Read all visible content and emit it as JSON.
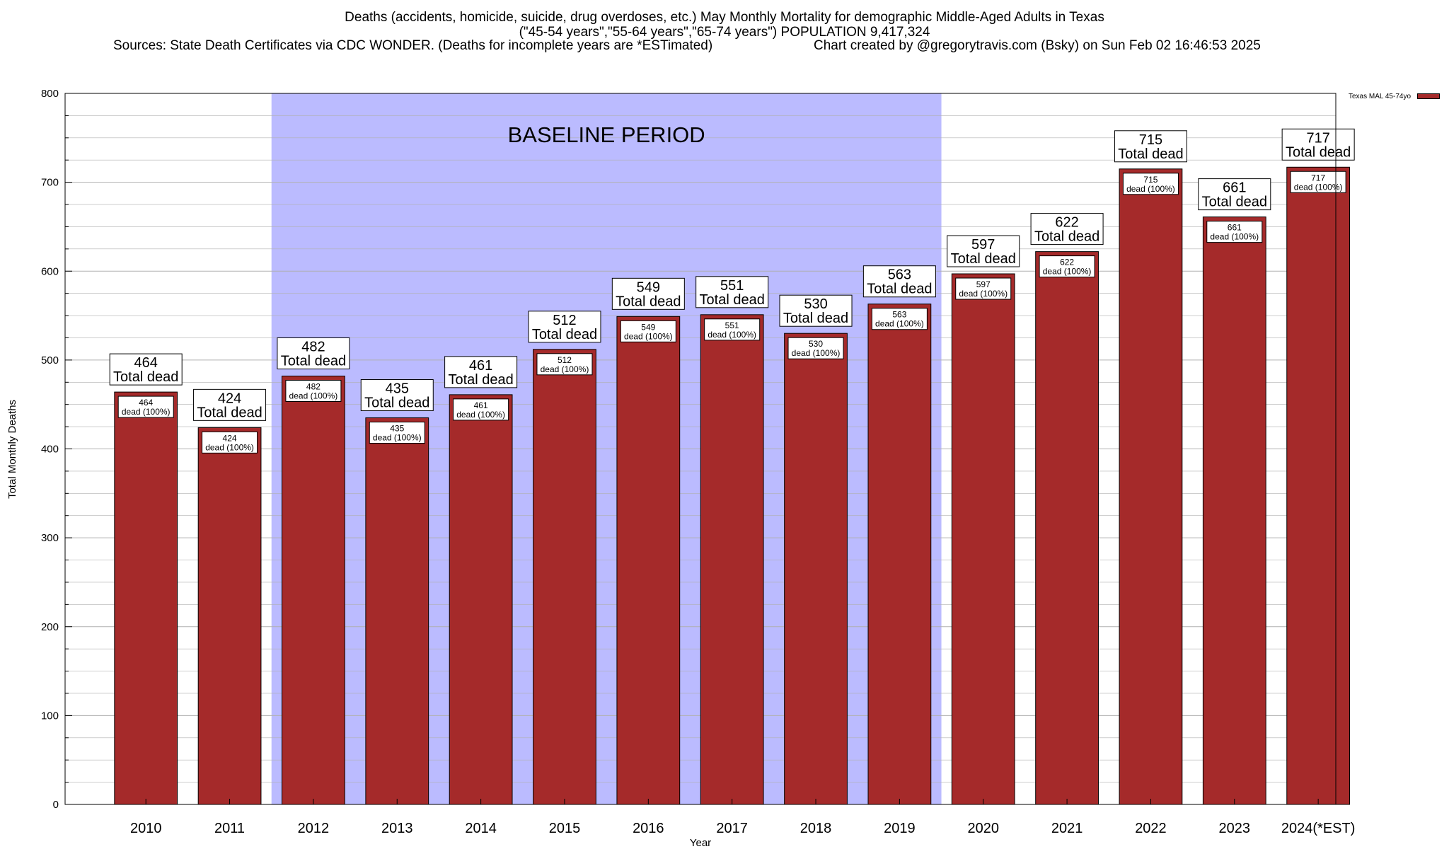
{
  "titles": {
    "line1": "Deaths (accidents, homicide, suicide, drug overdoses, etc.) May Monthly Mortality for demographic Middle-Aged Adults in Texas",
    "line2": "(\"45-54 years\",\"55-64 years\",\"65-74 years\") POPULATION 9,417,324",
    "sources": "Sources: State Death Certificates via CDC WONDER. (Deaths for incomplete years are *ESTimated)",
    "credit": "Chart created by @gregorytravis.com (Bsky) on Sun Feb 02 16:46:53 2025"
  },
  "legend": {
    "label": "Texas MAL 45-74yo",
    "color": "#a52a2a"
  },
  "chart_data": {
    "type": "bar",
    "title": "Deaths (accidents, homicide, suicide, drug overdoses, etc.) May Monthly Mortality for demographic Middle-Aged Adults in Texas",
    "xlabel": "Year",
    "ylabel": "Total Monthly Deaths",
    "ylim": [
      0,
      800
    ],
    "yticks": [
      0,
      100,
      200,
      300,
      400,
      500,
      600,
      700,
      800
    ],
    "grid": true,
    "categories": [
      "2010",
      "2011",
      "2012",
      "2013",
      "2014",
      "2015",
      "2016",
      "2017",
      "2018",
      "2019",
      "2020",
      "2021",
      "2022",
      "2023",
      "2024(*EST)"
    ],
    "series": [
      {
        "name": "Texas MAL 45-74yo",
        "color": "#a52a2a",
        "values": [
          464,
          424,
          482,
          435,
          461,
          512,
          549,
          551,
          530,
          563,
          597,
          622,
          715,
          661,
          717
        ]
      }
    ],
    "top_label_suffix": "Total dead",
    "inner_label_suffix": "dead (100%)",
    "annotation": {
      "text": "BASELINE PERIOD",
      "from_category": "2012",
      "to_category": "2019",
      "color": "#bbbbff"
    }
  }
}
